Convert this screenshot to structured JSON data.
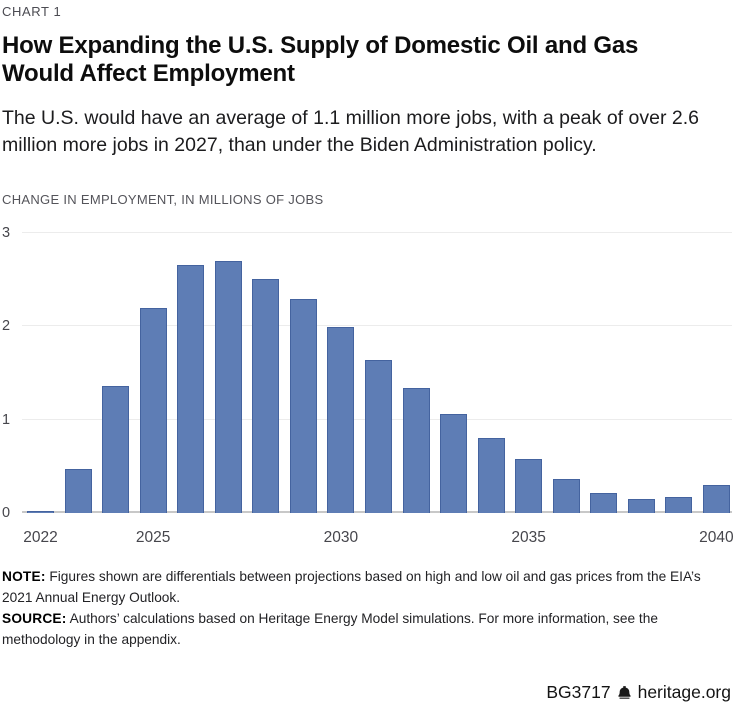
{
  "kicker": "CHART 1",
  "title": "How Expanding the U.S. Supply of Domestic Oil and Gas Would Affect Employment",
  "subtitle": "The U.S. would have an average of 1.1 million more jobs, with a peak of over 2.6 million more jobs in 2027, than under the Biden Administration policy.",
  "chart_data": {
    "type": "bar",
    "title": "",
    "axis_label": "CHANGE IN EMPLOYMENT, IN MILLIONS OF JOBS",
    "categories": [
      2022,
      2023,
      2024,
      2025,
      2026,
      2027,
      2028,
      2029,
      2030,
      2031,
      2032,
      2033,
      2034,
      2035,
      2036,
      2037,
      2038,
      2039,
      2040
    ],
    "values": [
      0.02,
      0.47,
      1.36,
      2.2,
      2.66,
      2.7,
      2.51,
      2.29,
      1.99,
      1.64,
      1.34,
      1.06,
      0.8,
      0.58,
      0.36,
      0.21,
      0.15,
      0.17,
      0.3
    ],
    "xlabel": "",
    "ylabel": "Change in employment, in millions of jobs",
    "ylim": [
      0,
      3
    ],
    "yticks": [
      0,
      1,
      2,
      3
    ],
    "xticks": [
      2022,
      2025,
      2030,
      2035,
      2040
    ],
    "grid": true,
    "legend": "none",
    "bar_color": "#5e7db5",
    "bar_border_color": "#44639f",
    "gridline_color": "#ececec",
    "baseline_color": "#c8c8c8"
  },
  "note": {
    "label": "NOTE:",
    "text": "Figures shown are differentials between projections based on high and low oil and gas prices from the EIA’s 2021 Annual Energy Outlook."
  },
  "source": {
    "label": "SOURCE:",
    "text": "Authors’ calculations based on Heritage Energy Model simulations. For more information, see the methodology in the appendix."
  },
  "footer": {
    "doc_id": "BG3717",
    "icon": "liberty-bell-icon",
    "site": "heritage.org"
  }
}
